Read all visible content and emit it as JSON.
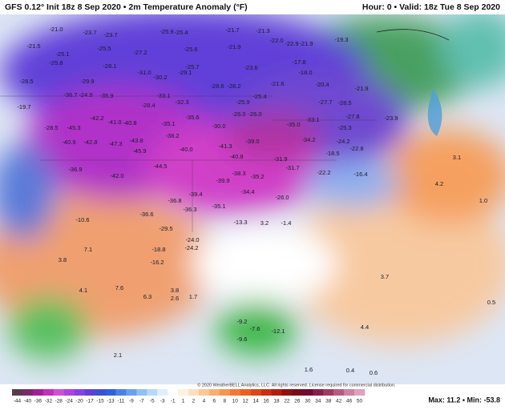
{
  "header": {
    "left": "GFS 0.12° Init 18z 8 Sep 2020 • 2m Temperature Anomaly (°F)",
    "right": "Hour: 0 • Valid: 18z Tue 8 Sep 2020"
  },
  "map": {
    "labels": [
      "-21.0",
      "-23.7",
      "-23.7",
      "-25.9",
      "-25.4",
      "-21.7",
      "-21.3",
      "-22.0",
      "-22.9",
      "-21.9",
      "-19.3",
      "-21.5",
      "-25.1",
      "-25.5",
      "-27.2",
      "-25.6",
      "-21.9",
      "-25.8",
      "-28.1",
      "-31.0",
      "-25.7",
      "-23.6",
      "-17.8",
      "-18.0",
      "-28.5",
      "-29.9",
      "-30.2",
      "-29.1",
      "-28.6",
      "-28.2",
      "-21.6",
      "-20.4",
      "-21.9",
      "-36.7",
      "-24.9",
      "-35.9",
      "-33.1",
      "-32.3",
      "-25.9",
      "-25.4",
      "-27.7",
      "-28.5",
      "-19.7",
      "-28.4",
      "-26.0",
      "-26.0",
      "-27.8",
      "-42.2",
      "-41.0",
      "-40.8",
      "-35.6",
      "-35.1",
      "-30.0",
      "-35.0",
      "-33.1",
      "-25.3",
      "-23.9",
      "-28.5",
      "-45.3",
      "-38.2",
      "-41.3",
      "-39.0",
      "-34.2",
      "-24.2",
      "-22.8",
      "-40.9",
      "-42.8",
      "-47.3",
      "-43.8",
      "-40.0",
      "-45.9",
      "-40.8",
      "-31.9",
      "-18.5",
      "-36.9",
      "-42.0",
      "-44.5",
      "-39.9",
      "-38.3",
      "-35.2",
      "-31.7",
      "-22.2",
      "-16.4",
      "-39.4",
      "-34.4",
      "-26.0",
      "-36.8",
      "-36.3",
      "-35.1",
      "-36.6",
      "-29.5",
      "-24.0",
      "-13.3",
      "3.2",
      "-1.4",
      "-18.8",
      "-24.2",
      "-16.2",
      "-10.6",
      "7.1",
      "3.8",
      "4.1",
      "7.6",
      "6.3",
      "3.8",
      "2.6",
      "1.7",
      "3.7",
      "4.4",
      "3.1",
      "4.2",
      "1.0",
      "1.6",
      "0.4",
      "0.6",
      "-12.1",
      "-9.6",
      "-9.2",
      "-7.6",
      "2.1",
      "0.5"
    ]
  },
  "colorbar": {
    "labels": [
      "-44",
      "-40",
      "-36",
      "-32",
      "-28",
      "-24",
      "-20",
      "-17",
      "-15",
      "-13",
      "-11",
      "-9",
      "-7",
      "-5",
      "-3",
      "-1",
      "1",
      "2",
      "4",
      "6",
      "8",
      "10",
      "12",
      "14",
      "16",
      "18",
      "22",
      "26",
      "30",
      "34",
      "38",
      "42",
      "46",
      "50"
    ]
  },
  "footer": {
    "copyright": "© 2020 WeatherBELL Analytics, LLC. All rights reserved. License required for commercial distribution.",
    "stats": "Max: 11.2 • Min: -53.8"
  }
}
